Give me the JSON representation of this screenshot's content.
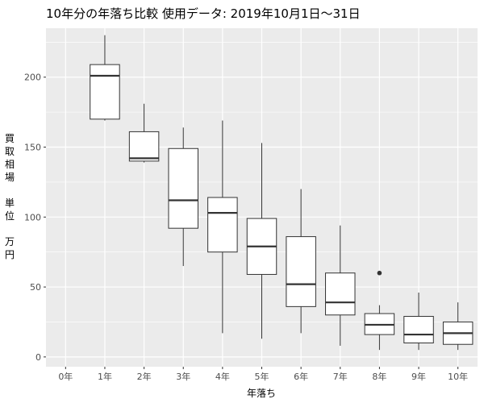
{
  "chart_data": {
    "type": "boxplot",
    "title": "10年分の年落ち比較 使用データ: 2019年10月1日〜31日",
    "xlabel": "年落ち",
    "ylabel_lines": [
      "買",
      "取",
      "相",
      "場",
      "",
      "単",
      "位",
      "",
      "万",
      "円"
    ],
    "categories": [
      "0年",
      "1年",
      "2年",
      "3年",
      "4年",
      "5年",
      "6年",
      "7年",
      "8年",
      "9年",
      "10年"
    ],
    "ylim": [
      -7,
      235
    ],
    "yticks": [
      0,
      50,
      100,
      150,
      200
    ],
    "grid": true,
    "boxes": [
      null,
      {
        "min": 169,
        "q1": 170,
        "median": 201,
        "q3": 209,
        "max": 230,
        "outliers": []
      },
      {
        "min": 139,
        "q1": 140,
        "median": 142,
        "q3": 161,
        "max": 181,
        "outliers": []
      },
      {
        "min": 65,
        "q1": 92,
        "median": 112,
        "q3": 149,
        "max": 164,
        "outliers": []
      },
      {
        "min": 17,
        "q1": 75,
        "median": 103,
        "q3": 114,
        "max": 169,
        "outliers": []
      },
      {
        "min": 13,
        "q1": 59,
        "median": 79,
        "q3": 99,
        "max": 153,
        "outliers": []
      },
      {
        "min": 17,
        "q1": 36,
        "median": 52,
        "q3": 86,
        "max": 120,
        "outliers": []
      },
      {
        "min": 8,
        "q1": 30,
        "median": 39,
        "q3": 60,
        "max": 94,
        "outliers": []
      },
      {
        "min": 5,
        "q1": 16,
        "median": 23,
        "q3": 31,
        "max": 37,
        "outliers": [
          60
        ]
      },
      {
        "min": 5,
        "q1": 10,
        "median": 16,
        "q3": 29,
        "max": 46,
        "outliers": []
      },
      {
        "min": 5,
        "q1": 9,
        "median": 17,
        "q3": 25,
        "max": 39,
        "outliers": []
      }
    ]
  }
}
